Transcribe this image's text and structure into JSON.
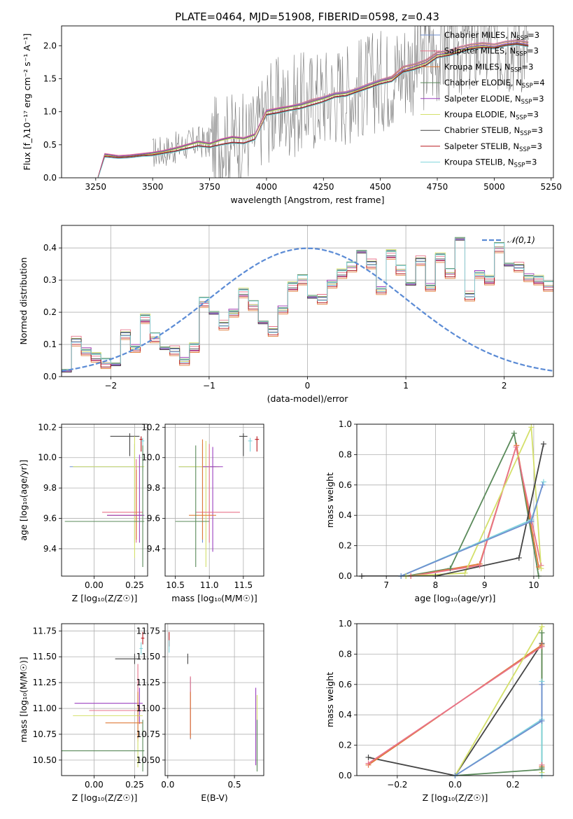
{
  "figure": {
    "title": "PLATE=0464, MJD=51908, FIBERID=0598, z=0.43"
  },
  "series_styles": [
    {
      "name": "Chabrier MILES",
      "color": "#6f8fcf"
    },
    {
      "name": "Salpeter MILES",
      "color": "#e8738a"
    },
    {
      "name": "Kroupa MILES",
      "color": "#e07b39"
    },
    {
      "name": "Chabrier ELODIE",
      "color": "#5a8a5a"
    },
    {
      "name": "Salpeter ELODIE",
      "color": "#9b40c0"
    },
    {
      "name": "Kroupa ELODIE",
      "color": "#d4e06a"
    },
    {
      "name": "Chabrier STELIB",
      "color": "#444444"
    },
    {
      "name": "Salpeter STELIB",
      "color": "#b8171c"
    },
    {
      "name": "Kroupa STELIB",
      "color": "#80d4dc"
    }
  ],
  "chart_data": [
    {
      "id": "spectrum",
      "type": "line",
      "xlabel": "wavelength [Angstrom, rest frame]",
      "ylabel": "Flux [f_λ10⁻¹⁷ erg cm⁻² s⁻¹ A⁻¹]",
      "xlim": [
        3100,
        5260
      ],
      "ylim": [
        0,
        2.3
      ],
      "xticks": [
        3250,
        3500,
        3750,
        4000,
        4250,
        4500,
        4750,
        5000,
        5250
      ],
      "yticks": [
        0.0,
        0.5,
        1.0,
        1.5,
        2.0
      ],
      "legend": [
        "Chabrier MILES, N_SSP=3",
        "Salpeter MILES, N_SSP=3",
        "Kroupa MILES, N_SSP=3",
        "Chabrier ELODIE, N_SSP=4",
        "Salpeter ELODIE, N_SSP=3",
        "Kroupa ELODIE, N_SSP=3",
        "Chabrier STELIB, N_SSP=3",
        "Salpeter STELIB, N_SSP=3",
        "Kroupa STELIB, N_SSP=3"
      ],
      "legend_position": "top-right",
      "model_x": [
        3260,
        3290,
        3350,
        3400,
        3450,
        3500,
        3550,
        3600,
        3650,
        3700,
        3750,
        3800,
        3850,
        3900,
        3950,
        4000,
        4050,
        4100,
        4150,
        4200,
        4250,
        4300,
        4350,
        4400,
        4450,
        4500,
        4550,
        4600,
        4650,
        4700,
        4750,
        4800,
        4850,
        4900,
        4950,
        5000,
        5050,
        5100,
        5150
      ],
      "models": {
        "MILES": [
          0.0,
          0.36,
          0.33,
          0.34,
          0.36,
          0.38,
          0.41,
          0.45,
          0.5,
          0.55,
          0.52,
          0.58,
          0.62,
          0.6,
          0.66,
          1.02,
          1.05,
          1.08,
          1.12,
          1.18,
          1.22,
          1.28,
          1.3,
          1.35,
          1.42,
          1.48,
          1.53,
          1.68,
          1.72,
          1.78,
          1.9,
          1.92,
          1.98,
          2.02,
          2.04,
          2.02,
          2.06,
          2.08,
          2.05
        ],
        "ELODIE": [
          0.0,
          0.35,
          0.32,
          0.33,
          0.35,
          0.37,
          0.4,
          0.44,
          0.49,
          0.54,
          0.51,
          0.57,
          0.61,
          0.59,
          0.65,
          1.0,
          1.04,
          1.07,
          1.1,
          1.15,
          1.2,
          1.26,
          1.28,
          1.33,
          1.4,
          1.46,
          1.5,
          1.62,
          1.68,
          1.74,
          1.86,
          1.88,
          1.94,
          1.98,
          2.0,
          1.98,
          2.02,
          2.04,
          2.01
        ],
        "STELIB": [
          0.0,
          0.32,
          0.3,
          0.31,
          0.33,
          0.34,
          0.37,
          0.4,
          0.44,
          0.48,
          0.46,
          0.5,
          0.53,
          0.52,
          0.58,
          0.95,
          0.98,
          1.02,
          1.05,
          1.1,
          1.15,
          1.22,
          1.24,
          1.3,
          1.36,
          1.42,
          1.46,
          1.6,
          1.64,
          1.7,
          1.82,
          1.85,
          1.9,
          1.95,
          1.97,
          1.96,
          2.0,
          2.02,
          1.99
        ]
      }
    },
    {
      "id": "residuals",
      "type": "line",
      "xlabel": "(data-model)/error",
      "ylabel": "Normed distribution",
      "xlim": [
        -2.5,
        2.5
      ],
      "ylim": [
        0,
        0.47
      ],
      "xticks": [
        -2,
        -1,
        0,
        1,
        2
      ],
      "yticks": [
        0.0,
        0.1,
        0.2,
        0.3,
        0.4
      ],
      "grid": true,
      "legend": [
        "𝒩(0,1)"
      ],
      "legend_position": "top-right",
      "gaussian": {
        "mean": 0,
        "sigma": 1,
        "color": "#5b8bd5"
      },
      "bin_width": 0.1,
      "bins_start": -2.5,
      "hist_base": [
        0.03,
        0.11,
        0.08,
        0.06,
        0.04,
        0.05,
        0.13,
        0.09,
        0.18,
        0.12,
        0.1,
        0.08,
        0.05,
        0.09,
        0.23,
        0.21,
        0.16,
        0.2,
        0.26,
        0.22,
        0.18,
        0.14,
        0.21,
        0.28,
        0.3,
        0.26,
        0.24,
        0.29,
        0.32,
        0.34,
        0.4,
        0.35,
        0.27,
        0.38,
        0.33,
        0.3,
        0.36,
        0.28,
        0.37,
        0.32,
        0.44,
        0.25,
        0.32,
        0.3,
        0.4,
        0.36,
        0.34,
        0.31,
        0.3,
        0.28,
        0.33,
        0.31,
        0.36,
        0.26,
        0.27,
        0.3,
        0.22,
        0.25,
        0.3,
        0.21,
        0.24,
        0.26,
        0.21,
        0.2,
        0.17,
        0.23,
        0.2,
        0.15,
        0.17,
        0.12,
        0.08,
        0.07,
        0.1,
        0.08,
        0.06,
        0.05,
        0.07,
        0.08,
        0.06,
        0.04
      ]
    },
    {
      "id": "age-vs-z",
      "type": "scatter",
      "xlabel": "Z [log₁₀(Z/Z☉)]",
      "ylabel": "age  [log₁₀(age/yr)]",
      "xlim": [
        -0.2,
        0.33
      ],
      "ylim": [
        9.22,
        10.22
      ],
      "xticks": [
        0.0,
        0.25
      ],
      "yticks": [
        9.4,
        9.6,
        9.8,
        10.0,
        10.2
      ],
      "grid": true,
      "points": [
        {
          "s": 6,
          "x": 0.22,
          "y": 10.14,
          "xerr": [
            0.12,
            0.06
          ],
          "yerr": [
            0.13,
            0.02
          ]
        },
        {
          "s": 7,
          "x": 0.29,
          "y": 10.12,
          "xerr": [
            0.01,
            0.01
          ],
          "yerr": [
            0.08,
            0.02
          ]
        },
        {
          "s": 8,
          "x": 0.3,
          "y": 10.11,
          "xerr": [
            0.01,
            0.01
          ],
          "yerr": [
            0.2,
            0.02
          ]
        },
        {
          "s": 0,
          "x": 0.25,
          "y": 9.94,
          "xerr": [
            0.4,
            0.05
          ],
          "yerr": [
            0.5,
            0.15
          ]
        },
        {
          "s": 5,
          "x": 0.25,
          "y": 9.94,
          "xerr": [
            0.38,
            0.06
          ],
          "yerr": [
            0.6,
            0.2
          ]
        },
        {
          "s": 1,
          "x": 0.26,
          "y": 9.64,
          "xerr": [
            0.21,
            0.04
          ],
          "yerr": [
            0.2,
            0.35
          ]
        },
        {
          "s": 2,
          "x": 0.26,
          "y": 9.62,
          "xerr": [
            0.18,
            0.04
          ],
          "yerr": [
            0.16,
            0.3
          ]
        },
        {
          "s": 4,
          "x": 0.28,
          "y": 9.62,
          "xerr": [
            0.2,
            0.03
          ],
          "yerr": [
            0.18,
            0.4
          ]
        },
        {
          "s": 3,
          "x": 0.3,
          "y": 9.58,
          "xerr": [
            0.48,
            0.01
          ],
          "yerr": [
            0.3,
            0.5
          ]
        }
      ]
    },
    {
      "id": "age-vs-mass",
      "type": "scatter",
      "xlabel": "mass [log₁₀(M/M☉)]",
      "xlim": [
        10.35,
        11.8
      ],
      "ylim": [
        9.22,
        10.22
      ],
      "xticks": [
        10.5,
        11.0,
        11.5
      ],
      "yticks": [
        9.4,
        9.6,
        9.8,
        10.0,
        10.2
      ],
      "grid": true,
      "points": [
        {
          "s": 6,
          "x": 11.5,
          "y": 10.14,
          "xerr": [
            0.06,
            0.06
          ],
          "yerr": [
            0.13,
            0.02
          ]
        },
        {
          "s": 7,
          "x": 11.7,
          "y": 10.12,
          "xerr": [
            0.03,
            0.03
          ],
          "yerr": [
            0.08,
            0.02
          ]
        },
        {
          "s": 8,
          "x": 11.6,
          "y": 10.11,
          "xerr": [
            0.03,
            0.03
          ],
          "yerr": [
            0.07,
            0.02
          ]
        },
        {
          "s": 0,
          "x": 10.9,
          "y": 9.94,
          "xerr": [
            0.35,
            0.2
          ],
          "yerr": [
            0.5,
            0.15
          ]
        },
        {
          "s": 5,
          "x": 10.95,
          "y": 9.94,
          "xerr": [
            0.4,
            0.2
          ],
          "yerr": [
            0.66,
            0.17
          ]
        },
        {
          "s": 4,
          "x": 11.05,
          "y": 9.94,
          "xerr": [
            0.15,
            0.15
          ],
          "yerr": [
            0.56,
            0.13
          ]
        },
        {
          "s": 1,
          "x": 11.0,
          "y": 9.64,
          "xerr": [
            0.2,
            0.45
          ],
          "yerr": [
            0.2,
            0.45
          ]
        },
        {
          "s": 2,
          "x": 10.9,
          "y": 9.62,
          "xerr": [
            0.2,
            0.2
          ],
          "yerr": [
            0.16,
            0.5
          ]
        },
        {
          "s": 3,
          "x": 10.8,
          "y": 9.58,
          "xerr": [
            0.3,
            0.2
          ],
          "yerr": [
            0.3,
            0.5
          ]
        }
      ]
    },
    {
      "id": "weight-vs-age",
      "type": "line",
      "xlabel": "age  [log₁₀(age/yr)]",
      "ylabel": "mass weight",
      "xlim": [
        6.4,
        10.4
      ],
      "ylim": [
        0,
        1.0
      ],
      "xticks": [
        7,
        8,
        9,
        10
      ],
      "yticks": [
        0.0,
        0.2,
        0.4,
        0.6,
        0.8,
        1.0
      ],
      "grid": true,
      "lines": [
        {
          "s": 3,
          "x": [
            7.4,
            8.3,
            9.6,
            10.1
          ],
          "y": [
            0.0,
            0.05,
            0.94,
            0.0
          ]
        },
        {
          "s": 2,
          "x": [
            7.5,
            8.9,
            9.65,
            10.1
          ],
          "y": [
            0.0,
            0.08,
            0.86,
            0.06
          ]
        },
        {
          "s": 1,
          "x": [
            7.5,
            8.9,
            9.64,
            10.15
          ],
          "y": [
            0.0,
            0.07,
            0.85,
            0.07
          ]
        },
        {
          "s": 5,
          "x": [
            7.4,
            8.6,
            9.95,
            10.15
          ],
          "y": [
            0.0,
            0.02,
            0.98,
            0.05
          ]
        },
        {
          "s": 6,
          "x": [
            6.5,
            8.0,
            9.7,
            10.2
          ],
          "y": [
            0.0,
            0.0,
            0.12,
            0.87
          ]
        },
        {
          "s": 8,
          "x": [
            7.3,
            9.95,
            10.2
          ],
          "y": [
            0.0,
            0.37,
            0.62
          ]
        },
        {
          "s": 0,
          "x": [
            7.3,
            9.95,
            10.18
          ],
          "y": [
            0.0,
            0.36,
            0.6
          ]
        }
      ]
    },
    {
      "id": "mass-vs-z",
      "type": "scatter",
      "xlabel": "Z [log₁₀(Z/Z☉)]",
      "ylabel": "mass [log₁₀(M/M☉)]",
      "xlim": [
        -0.2,
        0.33
      ],
      "ylim": [
        10.35,
        11.82
      ],
      "xticks": [
        0.0,
        0.25
      ],
      "yticks": [
        10.5,
        10.75,
        11.0,
        11.25,
        11.5,
        11.75
      ],
      "grid": true,
      "points": [
        {
          "s": 7,
          "x": 0.3,
          "y": 11.68,
          "xerr": [
            0.01,
            0.01
          ],
          "yerr": [
            0.06,
            0.06
          ]
        },
        {
          "s": 8,
          "x": 0.29,
          "y": 11.58,
          "xerr": [
            0.01,
            0.01
          ],
          "yerr": [
            0.06,
            0.06
          ]
        },
        {
          "s": 6,
          "x": 0.25,
          "y": 11.48,
          "xerr": [
            0.12,
            0.02
          ],
          "yerr": [
            0.05,
            0.05
          ]
        },
        {
          "s": 4,
          "x": 0.28,
          "y": 11.05,
          "xerr": [
            0.4,
            0.02
          ],
          "yerr": [
            0.2,
            0.15
          ]
        },
        {
          "s": 1,
          "x": 0.27,
          "y": 10.98,
          "xerr": [
            0.3,
            0.03
          ],
          "yerr": [
            0.3,
            0.45
          ]
        },
        {
          "s": 5,
          "x": 0.27,
          "y": 10.93,
          "xerr": [
            0.4,
            0.03
          ],
          "yerr": [
            0.5,
            0.2
          ]
        },
        {
          "s": 2,
          "x": 0.27,
          "y": 10.86,
          "xerr": [
            0.2,
            0.03
          ],
          "yerr": [
            0.15,
            0.3
          ]
        },
        {
          "s": 3,
          "x": 0.3,
          "y": 10.59,
          "xerr": [
            0.5,
            0.01
          ],
          "yerr": [
            0.2,
            0.3
          ]
        }
      ]
    },
    {
      "id": "mass-vs-ebv",
      "type": "scatter",
      "xlabel": "E(B-V)",
      "xlim": [
        -0.02,
        0.72
      ],
      "ylim": [
        10.35,
        11.82
      ],
      "xticks": [
        0.0,
        0.5
      ],
      "yticks": [
        10.5,
        10.75,
        11.0,
        11.25,
        11.5,
        11.75
      ],
      "grid": true,
      "points": [
        {
          "s": 7,
          "x": 0.01,
          "y": 11.7,
          "xerr": [
            0.0,
            0.0
          ],
          "yerr": [
            0.1,
            0.04
          ]
        },
        {
          "s": 8,
          "x": 0.01,
          "y": 11.6,
          "xerr": [
            0.0,
            0.0
          ],
          "yerr": [
            0.06,
            0.06
          ]
        },
        {
          "s": 6,
          "x": 0.15,
          "y": 11.48,
          "xerr": [
            0.0,
            0.0
          ],
          "yerr": [
            0.05,
            0.05
          ]
        },
        {
          "s": 0,
          "x": 0.17,
          "y": 11.0,
          "xerr": [
            0.0,
            0.0
          ],
          "yerr": [
            0.3,
            0.3
          ]
        },
        {
          "s": 1,
          "x": 0.17,
          "y": 10.98,
          "xerr": [
            0.0,
            0.0
          ],
          "yerr": [
            0.25,
            0.33
          ]
        },
        {
          "s": 2,
          "x": 0.17,
          "y": 10.86,
          "xerr": [
            0.0,
            0.0
          ],
          "yerr": [
            0.15,
            0.3
          ]
        },
        {
          "s": 4,
          "x": 0.66,
          "y": 11.05,
          "xerr": [
            0.0,
            0.0
          ],
          "yerr": [
            0.6,
            0.15
          ]
        },
        {
          "s": 5,
          "x": 0.67,
          "y": 10.93,
          "xerr": [
            0.0,
            0.0
          ],
          "yerr": [
            0.5,
            0.2
          ]
        },
        {
          "s": 3,
          "x": 0.67,
          "y": 10.59,
          "xerr": [
            0.0,
            0.0
          ],
          "yerr": [
            0.2,
            0.3
          ]
        }
      ]
    },
    {
      "id": "weight-vs-z",
      "type": "line",
      "xlabel": "Z [log₁₀(Z/Z☉)]",
      "ylabel": "mass weight",
      "xlim": [
        -0.34,
        0.34
      ],
      "ylim": [
        0,
        1.0
      ],
      "xticks": [
        -0.2,
        0.0,
        0.2
      ],
      "yticks": [
        0.0,
        0.2,
        0.4,
        0.6,
        0.8,
        1.0
      ],
      "grid": true,
      "lines": [
        {
          "s": 6,
          "x": [
            -0.3,
            0.0,
            0.3,
            0.3
          ],
          "y": [
            0.12,
            0.0,
            0.87,
            0.85
          ]
        },
        {
          "s": 2,
          "x": [
            -0.3,
            0.3,
            0.3
          ],
          "y": [
            0.07,
            0.86,
            0.06
          ]
        },
        {
          "s": 1,
          "x": [
            -0.3,
            0.3,
            0.3
          ],
          "y": [
            0.08,
            0.85,
            0.07
          ]
        },
        {
          "s": 5,
          "x": [
            0.0,
            0.3,
            0.3
          ],
          "y": [
            0.0,
            0.98,
            0.02
          ]
        },
        {
          "s": 3,
          "x": [
            0.0,
            0.3,
            0.3,
            0.3
          ],
          "y": [
            0.0,
            0.04,
            0.94,
            0.05
          ]
        },
        {
          "s": 8,
          "x": [
            0.0,
            0.3,
            0.3,
            0.3
          ],
          "y": [
            0.0,
            0.37,
            0.62,
            0.0
          ]
        },
        {
          "s": 0,
          "x": [
            0.0,
            0.3,
            0.3
          ],
          "y": [
            0.0,
            0.36,
            0.6
          ]
        }
      ]
    }
  ]
}
